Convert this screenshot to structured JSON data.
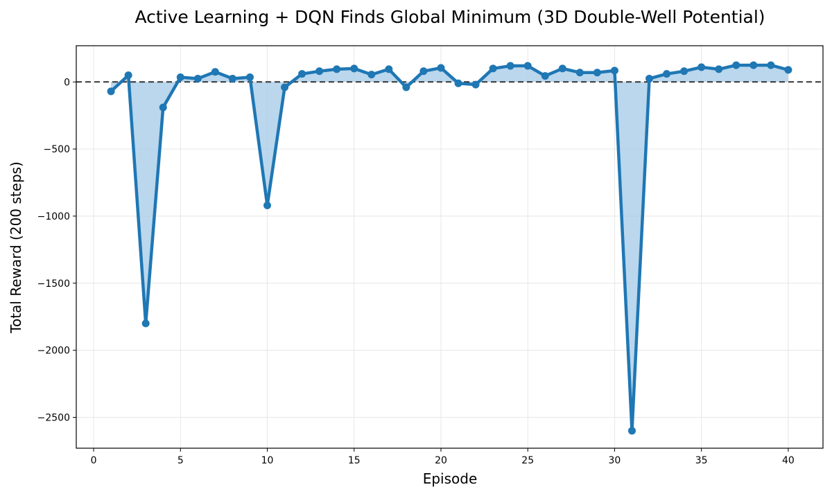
{
  "chart_data": {
    "type": "line",
    "title": "Active Learning + DQN Finds Global Minimum (3D Double-Well Potential)",
    "xlabel": "Episode",
    "ylabel": "Total Reward (200 steps)",
    "xlim": [
      -1.0,
      42.0
    ],
    "ylim": [
      -2730,
      270
    ],
    "xticks": [
      0,
      5,
      10,
      15,
      20,
      25,
      30,
      35,
      40
    ],
    "yticks": [
      0,
      -500,
      -1000,
      -1500,
      -2000,
      -2500
    ],
    "xtick_labels": [
      "0",
      "5",
      "10",
      "15",
      "20",
      "25",
      "30",
      "35",
      "40"
    ],
    "ytick_labels": [
      "0",
      "−500",
      "−1000",
      "−1500",
      "−2000",
      "−2500"
    ],
    "grid": true,
    "reference_line": {
      "y": 0,
      "style": "dashed"
    },
    "fill_to_zero": true,
    "colors": {
      "line": "#1f77b4",
      "fill": "#a9cde8",
      "ref": "#333333"
    },
    "x": [
      1,
      2,
      3,
      4,
      5,
      6,
      7,
      8,
      9,
      10,
      11,
      12,
      13,
      14,
      15,
      16,
      17,
      18,
      19,
      20,
      21,
      22,
      23,
      24,
      25,
      26,
      27,
      28,
      29,
      30,
      31,
      32,
      33,
      34,
      35,
      36,
      37,
      38,
      39,
      40
    ],
    "series": [
      {
        "values": [
          -70,
          50,
          -1800,
          -190,
          35,
          25,
          75,
          25,
          35,
          -920,
          -40,
          60,
          80,
          95,
          100,
          55,
          95,
          -40,
          80,
          105,
          -10,
          -20,
          100,
          120,
          120,
          45,
          100,
          70,
          70,
          85,
          -2600,
          25,
          60,
          80,
          110,
          95,
          125,
          125,
          125,
          90
        ]
      }
    ]
  }
}
